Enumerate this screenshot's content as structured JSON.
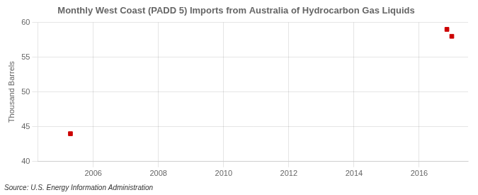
{
  "chart_data": {
    "type": "scatter",
    "title": "Monthly West Coast (PADD 5) Imports from Australia of Hydrocarbon Gas Liquids",
    "ylabel": "Thousand Barrels",
    "source": "Source: U.S. Energy Information Administration",
    "x": [
      2005.3,
      2016.85,
      2017.0
    ],
    "values": [
      44,
      59,
      58
    ],
    "color": "#cc0000",
    "marker": "square",
    "xlim": [
      2004.3,
      2017.5
    ],
    "ylim": [
      40,
      60
    ],
    "xticks": [
      2006,
      2008,
      2010,
      2012,
      2014,
      2016
    ],
    "yticks": [
      40,
      45,
      50,
      55,
      60
    ],
    "grid": true
  }
}
